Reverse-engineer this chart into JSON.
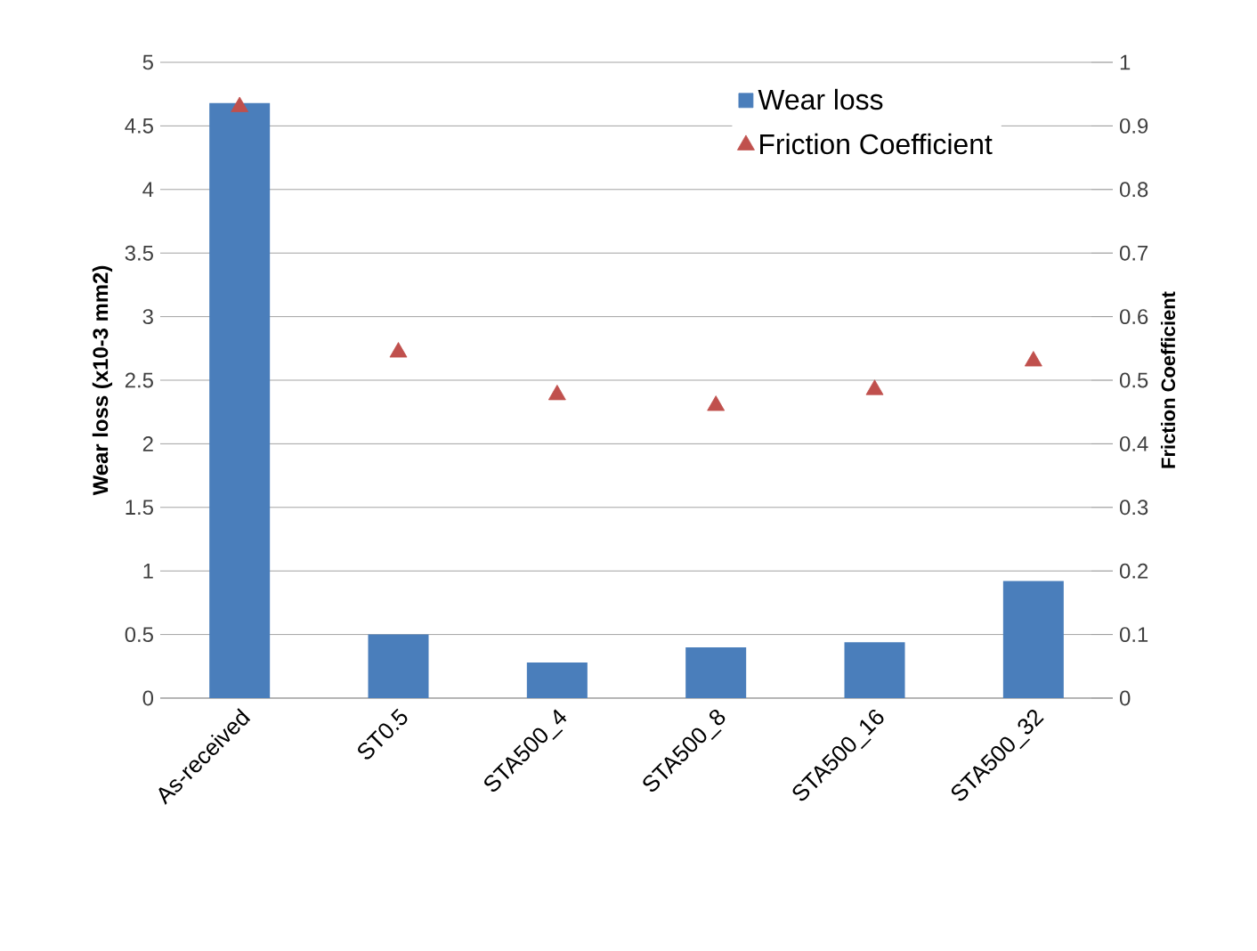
{
  "chart_data": {
    "type": "bar",
    "ylabel": "Wear loss (x10-3 mm2)",
    "y2label": "Friction Coefficient",
    "categories": [
      "As-received",
      "ST0.5",
      "STA500_4",
      "STA500_8",
      "STA500_16",
      "STA500_32"
    ],
    "series": [
      {
        "name": "Wear loss",
        "color": "#4a7ebb",
        "values": [
          4.68,
          0.5,
          0.28,
          0.4,
          0.44,
          0.92
        ]
      },
      {
        "name": "Friction Coefficient",
        "type": "scatter",
        "axis": "y2",
        "marker": "triangle",
        "color": "#c0504d",
        "values": [
          0.93,
          0.544,
          0.477,
          0.46,
          0.485,
          0.53
        ]
      }
    ],
    "ylim": [
      0,
      5
    ],
    "yticks": [
      0,
      0.5,
      1,
      1.5,
      2,
      2.5,
      3,
      3.5,
      4,
      4.5,
      5
    ],
    "y2lim": [
      0,
      1
    ],
    "y2ticks": [
      0,
      0.1,
      0.2,
      0.3,
      0.4,
      0.5,
      0.6,
      0.7,
      0.8,
      0.9,
      1
    ],
    "grid": "y",
    "legend": "top right"
  }
}
